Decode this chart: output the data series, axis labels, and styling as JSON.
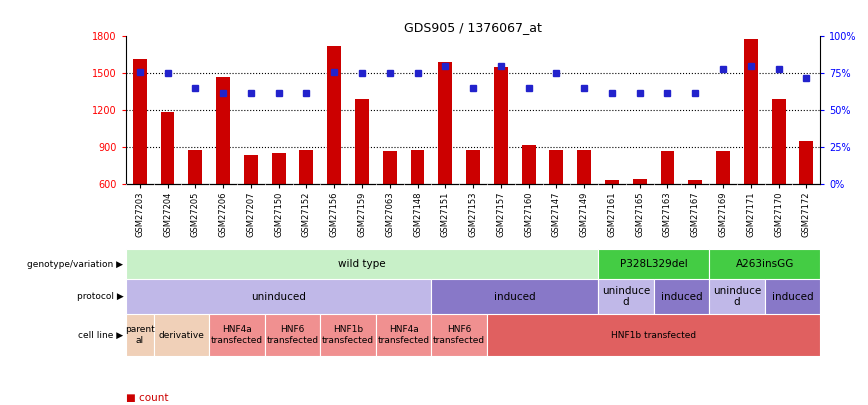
{
  "title": "GDS905 / 1376067_at",
  "samples": [
    "GSM27203",
    "GSM27204",
    "GSM27205",
    "GSM27206",
    "GSM27207",
    "GSM27150",
    "GSM27152",
    "GSM27156",
    "GSM27159",
    "GSM27063",
    "GSM27148",
    "GSM27151",
    "GSM27153",
    "GSM27157",
    "GSM27160",
    "GSM27147",
    "GSM27149",
    "GSM27161",
    "GSM27165",
    "GSM27163",
    "GSM27167",
    "GSM27169",
    "GSM27171",
    "GSM27170",
    "GSM27172"
  ],
  "counts": [
    1620,
    1185,
    880,
    1470,
    840,
    850,
    880,
    1720,
    1290,
    870,
    880,
    1590,
    880,
    1550,
    920,
    880,
    880,
    635,
    640,
    870,
    635,
    870,
    1780,
    1290,
    955
  ],
  "percentile": [
    76,
    75,
    65,
    62,
    62,
    62,
    62,
    76,
    75,
    75,
    75,
    80,
    65,
    80,
    65,
    75,
    65,
    62,
    62,
    62,
    62,
    78,
    80,
    78,
    72
  ],
  "ylim_left": [
    600,
    1800
  ],
  "ylim_right": [
    0,
    100
  ],
  "yticks_left": [
    600,
    900,
    1200,
    1500,
    1800
  ],
  "yticks_right": [
    0,
    25,
    50,
    75,
    100
  ],
  "bar_color": "#cc0000",
  "dot_color": "#2222cc",
  "grid_color": "#000000",
  "bg_color": "#ffffff",
  "genotype_groups": [
    {
      "label": "wild type",
      "start": 0,
      "end": 17,
      "color": "#c8f0c8"
    },
    {
      "label": "P328L329del",
      "start": 17,
      "end": 21,
      "color": "#44cc44"
    },
    {
      "label": "A263insGG",
      "start": 21,
      "end": 25,
      "color": "#44cc44"
    }
  ],
  "protocol_groups": [
    {
      "label": "uninduced",
      "start": 0,
      "end": 11,
      "color": "#c0b8e8"
    },
    {
      "label": "induced",
      "start": 11,
      "end": 17,
      "color": "#8878c8"
    },
    {
      "label": "uninduce\nd",
      "start": 17,
      "end": 19,
      "color": "#c0b8e8"
    },
    {
      "label": "induced",
      "start": 19,
      "end": 21,
      "color": "#8878c8"
    },
    {
      "label": "uninduce\nd",
      "start": 21,
      "end": 23,
      "color": "#c0b8e8"
    },
    {
      "label": "induced",
      "start": 23,
      "end": 25,
      "color": "#8878c8"
    }
  ],
  "cellline_groups": [
    {
      "label": "parent\nal",
      "start": 0,
      "end": 1,
      "color": "#f0d0b8"
    },
    {
      "label": "derivative",
      "start": 1,
      "end": 3,
      "color": "#f0d0b8"
    },
    {
      "label": "HNF4a\ntransfected",
      "start": 3,
      "end": 5,
      "color": "#f09090"
    },
    {
      "label": "HNF6\ntransfected",
      "start": 5,
      "end": 7,
      "color": "#f09090"
    },
    {
      "label": "HNF1b\ntransfected",
      "start": 7,
      "end": 9,
      "color": "#f09090"
    },
    {
      "label": "HNF4a\ntransfected",
      "start": 9,
      "end": 11,
      "color": "#f09090"
    },
    {
      "label": "HNF6\ntransfected",
      "start": 11,
      "end": 13,
      "color": "#f09090"
    },
    {
      "label": "HNF1b transfected",
      "start": 13,
      "end": 25,
      "color": "#e06060"
    }
  ],
  "bar_width": 0.5
}
